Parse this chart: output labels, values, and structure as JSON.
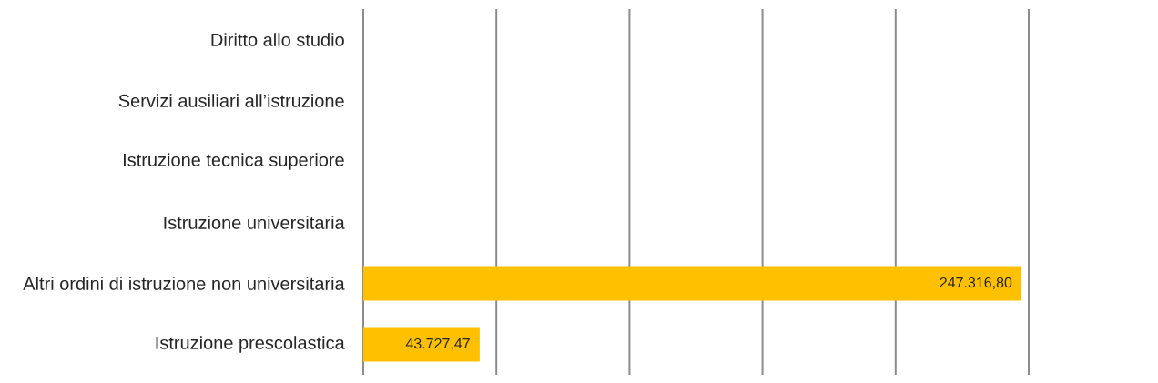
{
  "chart_data": {
    "type": "bar",
    "orientation": "horizontal",
    "categories": [
      "Diritto allo studio",
      "Servizi ausiliari all’istruzione",
      "Istruzione tecnica superiore",
      "Istruzione universitaria",
      "Altri ordini di istruzione non universitaria",
      "Istruzione prescolastica"
    ],
    "values": [
      null,
      null,
      null,
      null,
      247316.8,
      43727.47
    ],
    "value_labels": [
      null,
      null,
      null,
      null,
      "247.316,80",
      "43.727,47"
    ],
    "color": "#ffc000",
    "xlim": [
      0,
      250000
    ],
    "xticks": [
      {
        "value": 0,
        "label": null
      },
      {
        "value": 50000,
        "label": null
      },
      {
        "value": 100000,
        "label": null
      },
      {
        "value": 150000,
        "label": null
      },
      {
        "value": 200000,
        "label": null
      },
      {
        "value": 250000,
        "label": null
      }
    ],
    "grid": "x",
    "tick_labels": "y"
  }
}
